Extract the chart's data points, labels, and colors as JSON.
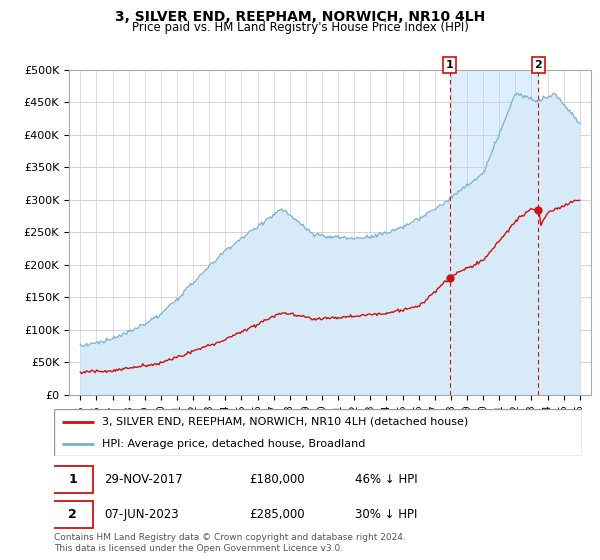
{
  "title": "3, SILVER END, REEPHAM, NORWICH, NR10 4LH",
  "subtitle": "Price paid vs. HM Land Registry's House Price Index (HPI)",
  "footer": "Contains HM Land Registry data © Crown copyright and database right 2024.\nThis data is licensed under the Open Government Licence v3.0.",
  "legend_line1": "3, SILVER END, REEPHAM, NORWICH, NR10 4LH (detached house)",
  "legend_line2": "HPI: Average price, detached house, Broadland",
  "transaction1": {
    "label": "1",
    "date": "29-NOV-2017",
    "price": "£180,000",
    "pct": "46% ↓ HPI"
  },
  "transaction2": {
    "label": "2",
    "date": "07-JUN-2023",
    "price": "£285,000",
    "pct": "30% ↓ HPI"
  },
  "hpi_color": "#7ab0d4",
  "hpi_fill_color": "#d6eaf8",
  "price_color": "#cc1111",
  "vline_color": "#cc1111",
  "ylim": [
    0,
    500000
  ],
  "yticks": [
    0,
    50000,
    100000,
    150000,
    200000,
    250000,
    300000,
    350000,
    400000,
    450000,
    500000
  ],
  "ytick_labels": [
    "£0",
    "£50K",
    "£100K",
    "£150K",
    "£200K",
    "£250K",
    "£300K",
    "£350K",
    "£400K",
    "£450K",
    "£500K"
  ],
  "t1_year": 2017.92,
  "t1_price": 180000,
  "t2_year": 2023.44,
  "t2_price": 285000,
  "background_color": "#ffffff",
  "grid_color": "#cccccc",
  "span_fill_color": "#ddeeff"
}
